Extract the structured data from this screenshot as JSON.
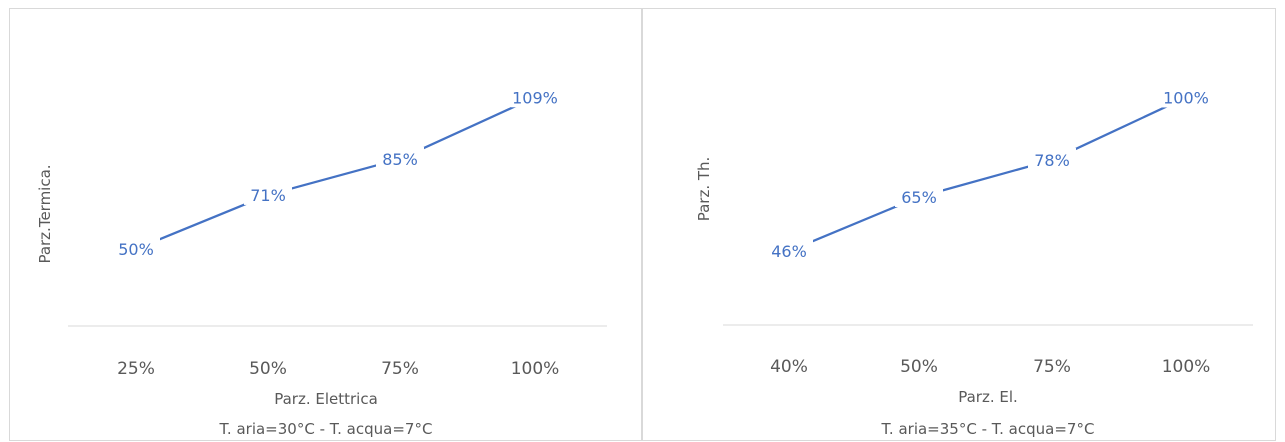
{
  "chart_data": [
    {
      "type": "line",
      "categories": [
        "25%",
        "50%",
        "75%",
        "100%"
      ],
      "series": [
        {
          "values": [
            50,
            71,
            85,
            109
          ]
        }
      ],
      "data_labels": [
        "50%",
        "71%",
        "85%",
        "109%"
      ],
      "xlabel": "Parz. Elettrica",
      "xlabel_sub": "T. aria=30°C  - T. acqua=7°C",
      "ylabel": "Parz.Termica.",
      "ylim": [
        20,
        120
      ],
      "grid": false,
      "line_color": "#4472c4"
    },
    {
      "type": "line",
      "categories": [
        "40%",
        "50%",
        "75%",
        "100%"
      ],
      "series": [
        {
          "values": [
            46,
            65,
            78,
            100
          ]
        }
      ],
      "data_labels": [
        "46%",
        "65%",
        "78%",
        "100%"
      ],
      "xlabel": "Parz. El.",
      "xlabel_sub": "T. aria=35°C - T. acqua=7°C",
      "ylabel": "Parz. Th.",
      "ylim": [
        20,
        110
      ],
      "grid": false,
      "line_color": "#4472c4"
    }
  ]
}
